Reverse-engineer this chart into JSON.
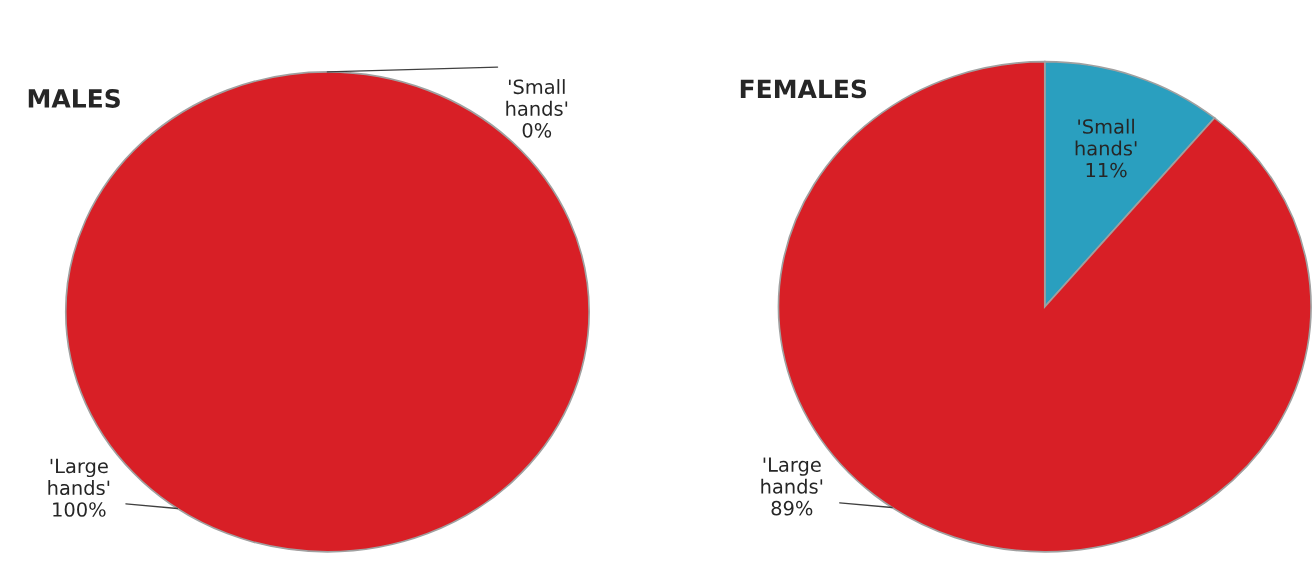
{
  "chart_data": [
    {
      "type": "pie",
      "title": "MALES",
      "categories": [
        "'Small hands'",
        "'Large hands'"
      ],
      "values": [
        0,
        100
      ],
      "colors": [
        "#a0a0a0",
        "#d81f26"
      ],
      "value_labels": [
        "0%",
        "100%"
      ]
    },
    {
      "type": "pie",
      "title": "FEMALES",
      "categories": [
        "'Small hands'",
        "'Large hands'"
      ],
      "values": [
        11,
        89
      ],
      "colors": [
        "#2a9fbf",
        "#d81f26"
      ],
      "value_labels": [
        "11%",
        "89%"
      ]
    }
  ]
}
